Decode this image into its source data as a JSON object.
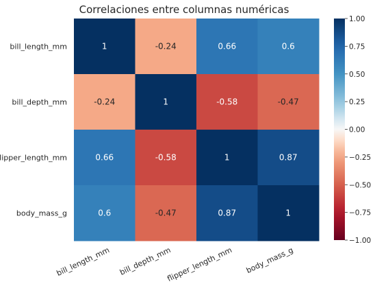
{
  "chart_data": {
    "type": "heatmap",
    "title": "Correlaciones entre columnas numéricas",
    "row_labels": [
      "bill_length_mm",
      "bill_depth_mm",
      "flipper_length_mm",
      "body_mass_g"
    ],
    "col_labels": [
      "bill_length_mm",
      "bill_depth_mm",
      "flipper_length_mm",
      "body_mass_g"
    ],
    "values": [
      [
        1,
        -0.24,
        0.66,
        0.6
      ],
      [
        -0.24,
        1,
        -0.58,
        -0.47
      ],
      [
        0.66,
        -0.58,
        1,
        0.87
      ],
      [
        0.6,
        -0.47,
        0.87,
        1
      ]
    ],
    "annotations": [
      [
        "1",
        "-0.24",
        "0.66",
        "0.6"
      ],
      [
        "-0.24",
        "1",
        "-0.58",
        "-0.47"
      ],
      [
        "0.66",
        "-0.58",
        "1",
        "0.87"
      ],
      [
        "0.6",
        "-0.47",
        "0.87",
        "1"
      ]
    ],
    "colormap": "RdBu",
    "vmin": -1,
    "vmax": 1,
    "colorbar_ticks": [
      "1.00",
      "0.75",
      "0.50",
      "0.25",
      "0.00",
      "−0.25",
      "−0.50",
      "−0.75",
      "−1.00"
    ],
    "colorbar_tick_values": [
      1,
      0.75,
      0.5,
      0.25,
      0,
      -0.25,
      -0.5,
      -0.75,
      -1
    ],
    "grid": false,
    "colorbar_position": "right"
  }
}
